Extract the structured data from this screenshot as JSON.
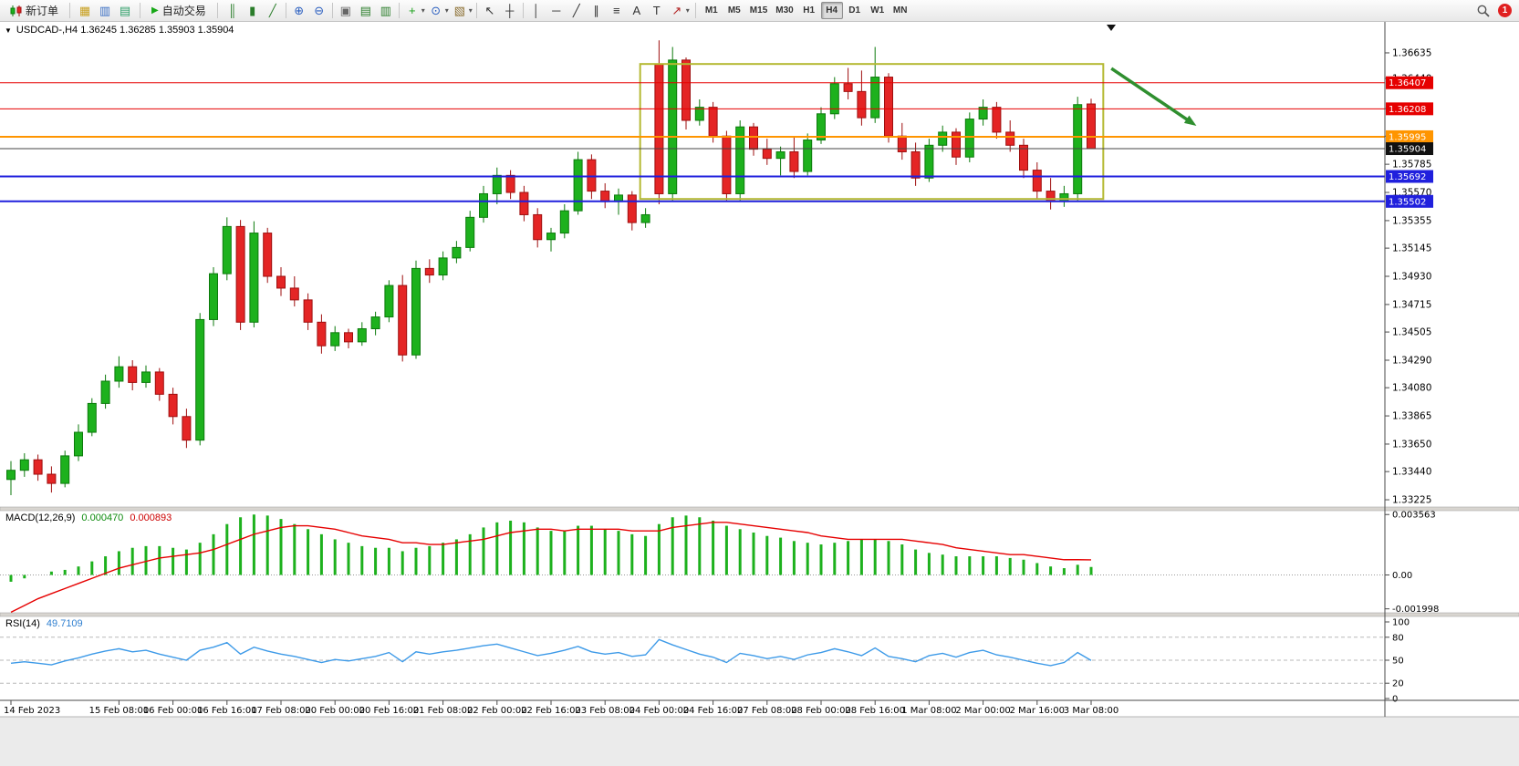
{
  "toolbar": {
    "new_order": {
      "label": "新订单"
    },
    "autotrading": {
      "label": "自动交易",
      "icon_glyph": "▶"
    },
    "dropdown_glyph": "▾",
    "icon_groups": [
      [
        {
          "name": "new-chart-icon",
          "glyph": "▦",
          "color": "#c8a020"
        },
        {
          "name": "profiles-icon",
          "glyph": "▥",
          "color": "#3b6fc4"
        },
        {
          "name": "market-watch-icon",
          "glyph": "▤",
          "color": "#2e9e68"
        }
      ],
      [
        {
          "name": "bar-chart-icon",
          "glyph": "║",
          "color": "#2a7d2a"
        },
        {
          "name": "candlestick-chart-icon",
          "glyph": "▮",
          "color": "#2a7d2a"
        },
        {
          "name": "line-chart-icon",
          "glyph": "╱",
          "color": "#2a7d2a"
        }
      ],
      [
        {
          "name": "zoom-in-icon",
          "glyph": "⊕",
          "color": "#2b5fc0"
        },
        {
          "name": "zoom-out-icon",
          "glyph": "⊖",
          "color": "#2b5fc0"
        }
      ],
      [
        {
          "name": "tile-windows-icon",
          "glyph": "▣",
          "color": "#666666"
        },
        {
          "name": "indicators-window-icon",
          "glyph": "▤",
          "color": "#2a7d2a"
        },
        {
          "name": "separate-window-icon",
          "glyph": "▥",
          "color": "#2a7d2a"
        }
      ],
      [
        {
          "name": "add-indicator-icon",
          "glyph": "+",
          "color": "#18a018",
          "dropdown": true
        },
        {
          "name": "periods-icon",
          "glyph": "⊙",
          "color": "#2b5fc0",
          "dropdown": true
        },
        {
          "name": "template-icon",
          "glyph": "▧",
          "color": "#8a6d2f",
          "dropdown": true
        }
      ],
      [
        {
          "name": "cursor-icon",
          "glyph": "↖",
          "color": "#333333"
        },
        {
          "name": "crosshair-icon",
          "glyph": "┼",
          "color": "#333333"
        }
      ],
      [
        {
          "name": "vertical-line-icon",
          "glyph": "│",
          "color": "#333333"
        },
        {
          "name": "horizontal-line-icon",
          "glyph": "─",
          "color": "#333333"
        },
        {
          "name": "trendline-icon",
          "glyph": "╱",
          "color": "#333333"
        },
        {
          "name": "channel-icon",
          "glyph": "∥",
          "color": "#333333"
        },
        {
          "name": "fibonacci-icon",
          "glyph": "≡",
          "color": "#333333"
        },
        {
          "name": "text-icon",
          "glyph": "A",
          "color": "#333333"
        },
        {
          "name": "label-icon",
          "glyph": "T",
          "color": "#333333"
        },
        {
          "name": "arrows-icon",
          "glyph": "↗",
          "color": "#b22222",
          "dropdown": true
        }
      ]
    ],
    "timeframes": [
      "M1",
      "M5",
      "M15",
      "M30",
      "H1",
      "H4",
      "D1",
      "W1",
      "MN"
    ],
    "active_timeframe": "H4",
    "notification": {
      "count": "1"
    }
  },
  "chart": {
    "menu_glyph": "▼",
    "title": "USDCAD-,H4  1.36245 1.36285 1.35903 1.35904",
    "symbol": "USDCAD-",
    "period": "H4"
  },
  "indicators": {
    "macd": {
      "name": "MACD(12,26,9)",
      "main_value": "0.000470",
      "signal_value": "0.000893"
    },
    "rsi": {
      "name": "RSI(14)",
      "value": "49.7109"
    }
  },
  "chart_data": {
    "type": "candlestick",
    "symbol": "USDCAD-",
    "timeframe": "H4",
    "colors": {
      "bull": "#1db11d",
      "bull_border": "#0c7a0c",
      "bear": "#e42525",
      "bear_border": "#9e0f0f",
      "macd_hist": "#1db11d",
      "macd_signal": "#e60000",
      "rsi_line": "#3d9ae8",
      "level_dash": "#b8b8b8",
      "axis_line": "#4a4a4a",
      "text": "#000000",
      "box": "#b5b933",
      "arrow": "#2f8f2f",
      "bid_line": "#444444",
      "bid_badge": "#111111"
    },
    "candles": [
      [
        1.3338,
        1.3352,
        1.3326,
        1.3345
      ],
      [
        1.3345,
        1.3358,
        1.334,
        1.3353
      ],
      [
        1.3353,
        1.3357,
        1.3337,
        1.3342
      ],
      [
        1.3342,
        1.3348,
        1.3328,
        1.3335
      ],
      [
        1.3335,
        1.336,
        1.3332,
        1.3356
      ],
      [
        1.3356,
        1.338,
        1.3352,
        1.3374
      ],
      [
        1.3374,
        1.34,
        1.3371,
        1.3396
      ],
      [
        1.3396,
        1.3418,
        1.3392,
        1.3413
      ],
      [
        1.3413,
        1.3432,
        1.3408,
        1.3424
      ],
      [
        1.3424,
        1.3429,
        1.3406,
        1.3412
      ],
      [
        1.3412,
        1.3425,
        1.3408,
        1.342
      ],
      [
        1.342,
        1.3423,
        1.3398,
        1.3403
      ],
      [
        1.3403,
        1.3408,
        1.338,
        1.3386
      ],
      [
        1.3386,
        1.3392,
        1.3362,
        1.3368
      ],
      [
        1.3368,
        1.3465,
        1.3364,
        1.346
      ],
      [
        1.346,
        1.35,
        1.3455,
        1.3495
      ],
      [
        1.3495,
        1.3538,
        1.349,
        1.3531
      ],
      [
        1.3531,
        1.3536,
        1.3452,
        1.3458
      ],
      [
        1.3458,
        1.3535,
        1.3454,
        1.3526
      ],
      [
        1.3526,
        1.353,
        1.3488,
        1.3493
      ],
      [
        1.3493,
        1.35,
        1.3478,
        1.3484
      ],
      [
        1.3484,
        1.3493,
        1.347,
        1.3475
      ],
      [
        1.3475,
        1.348,
        1.3452,
        1.3458
      ],
      [
        1.3458,
        1.3464,
        1.3434,
        1.344
      ],
      [
        1.344,
        1.3455,
        1.3436,
        1.345
      ],
      [
        1.345,
        1.3453,
        1.3438,
        1.3443
      ],
      [
        1.3443,
        1.3458,
        1.344,
        1.3453
      ],
      [
        1.3453,
        1.3466,
        1.3448,
        1.3462
      ],
      [
        1.3462,
        1.349,
        1.3458,
        1.3486
      ],
      [
        1.3486,
        1.3494,
        1.3428,
        1.3433
      ],
      [
        1.3433,
        1.3505,
        1.343,
        1.3499
      ],
      [
        1.3499,
        1.3506,
        1.3488,
        1.3494
      ],
      [
        1.3494,
        1.3512,
        1.349,
        1.3507
      ],
      [
        1.3507,
        1.352,
        1.3503,
        1.3515
      ],
      [
        1.3515,
        1.3543,
        1.3512,
        1.3538
      ],
      [
        1.3538,
        1.3562,
        1.3534,
        1.3556
      ],
      [
        1.3556,
        1.3576,
        1.3548,
        1.357
      ],
      [
        1.357,
        1.3574,
        1.3552,
        1.3557
      ],
      [
        1.3557,
        1.3562,
        1.3535,
        1.354
      ],
      [
        1.354,
        1.3545,
        1.3515,
        1.3521
      ],
      [
        1.3521,
        1.353,
        1.3512,
        1.3526
      ],
      [
        1.3526,
        1.3548,
        1.3522,
        1.3543
      ],
      [
        1.3543,
        1.3588,
        1.354,
        1.3582
      ],
      [
        1.3582,
        1.3586,
        1.3552,
        1.3558
      ],
      [
        1.3558,
        1.3564,
        1.3545,
        1.355
      ],
      [
        1.355,
        1.356,
        1.354,
        1.3555
      ],
      [
        1.3555,
        1.3558,
        1.3528,
        1.3534
      ],
      [
        1.3534,
        1.3545,
        1.353,
        1.354
      ],
      [
        1.3655,
        1.3673,
        1.3548,
        1.3556
      ],
      [
        1.3556,
        1.3668,
        1.355,
        1.3658
      ],
      [
        1.3658,
        1.366,
        1.3605,
        1.3612
      ],
      [
        1.3612,
        1.3628,
        1.3608,
        1.3622
      ],
      [
        1.3622,
        1.3626,
        1.3595,
        1.36
      ],
      [
        1.36,
        1.3604,
        1.355,
        1.3556
      ],
      [
        1.3556,
        1.3612,
        1.355,
        1.3607
      ],
      [
        1.3607,
        1.361,
        1.3585,
        1.359
      ],
      [
        1.359,
        1.3598,
        1.3578,
        1.3583
      ],
      [
        1.3583,
        1.3592,
        1.357,
        1.3588
      ],
      [
        1.3588,
        1.36,
        1.3568,
        1.3573
      ],
      [
        1.3573,
        1.3602,
        1.357,
        1.3597
      ],
      [
        1.3597,
        1.3622,
        1.3594,
        1.3617
      ],
      [
        1.3617,
        1.3645,
        1.3613,
        1.364
      ],
      [
        1.364,
        1.3652,
        1.3628,
        1.3634
      ],
      [
        1.3634,
        1.365,
        1.3608,
        1.3614
      ],
      [
        1.3614,
        1.3668,
        1.361,
        1.3645
      ],
      [
        1.3645,
        1.3648,
        1.3595,
        1.36
      ],
      [
        1.36,
        1.361,
        1.3582,
        1.3588
      ],
      [
        1.3588,
        1.3595,
        1.3562,
        1.3568
      ],
      [
        1.3568,
        1.3598,
        1.3565,
        1.3593
      ],
      [
        1.3593,
        1.3608,
        1.3588,
        1.3603
      ],
      [
        1.3603,
        1.3606,
        1.3578,
        1.3584
      ],
      [
        1.3584,
        1.3618,
        1.358,
        1.3613
      ],
      [
        1.3613,
        1.3628,
        1.3608,
        1.3622
      ],
      [
        1.3622,
        1.3626,
        1.3598,
        1.3603
      ],
      [
        1.3603,
        1.3612,
        1.3588,
        1.3593
      ],
      [
        1.3593,
        1.3598,
        1.3568,
        1.3574
      ],
      [
        1.3574,
        1.358,
        1.3552,
        1.3558
      ],
      [
        1.3558,
        1.3568,
        1.3544,
        1.355
      ],
      [
        1.355,
        1.3562,
        1.3546,
        1.3556
      ],
      [
        1.3556,
        1.363,
        1.355,
        1.3624
      ],
      [
        1.36245,
        1.36285,
        1.35903,
        1.35904
      ]
    ],
    "y_range": [
      1.3317,
      1.3676
    ],
    "y_ticks": [
      "1.36635",
      "1.36440",
      "1.36210",
      "1.36000",
      "1.35785",
      "1.35570",
      "1.35355",
      "1.35145",
      "1.34930",
      "1.34715",
      "1.34505",
      "1.34290",
      "1.34080",
      "1.33865",
      "1.33650",
      "1.33440",
      "1.33225"
    ],
    "hlines": [
      {
        "price": 1.36407,
        "color": "#e60000",
        "width": 1,
        "label": "1.36407"
      },
      {
        "price": 1.36208,
        "color": "#e60000",
        "width": 1,
        "label": "1.36208"
      },
      {
        "price": 1.35995,
        "color": "#ff9500",
        "width": 2,
        "label": "1.35995"
      },
      {
        "price": 1.35692,
        "color": "#2020dd",
        "width": 2,
        "label": "1.35692"
      },
      {
        "price": 1.35502,
        "color": "#2020dd",
        "width": 2,
        "label": "1.35502"
      }
    ],
    "bid": {
      "price": 1.35904,
      "label": "1.35904"
    },
    "rectangle": {
      "i1": 46.6,
      "i2": 80.9,
      "p_top": 1.3655,
      "p_bottom": 1.3552
    },
    "arrow": {
      "i1": 81.5,
      "p1": 1.36516,
      "i2": 87.8,
      "p2": 1.36078
    },
    "time_labels": [
      {
        "i": 0,
        "label": "14 Feb 2023"
      },
      {
        "i": 8,
        "label": "15 Feb 08:00"
      },
      {
        "i": 12,
        "label": "16 Feb 00:00"
      },
      {
        "i": 16,
        "label": "16 Feb 16:00"
      },
      {
        "i": 20,
        "label": "17 Feb 08:00"
      },
      {
        "i": 24,
        "label": "20 Feb 00:00"
      },
      {
        "i": 28,
        "label": "20 Feb 16:00"
      },
      {
        "i": 32,
        "label": "21 Feb 08:00"
      },
      {
        "i": 36,
        "label": "22 Feb 00:00"
      },
      {
        "i": 40,
        "label": "22 Feb 16:00"
      },
      {
        "i": 44,
        "label": "23 Feb 08:00"
      },
      {
        "i": 48,
        "label": "24 Feb 00:00"
      },
      {
        "i": 52,
        "label": "24 Feb 16:00"
      },
      {
        "i": 56,
        "label": "27 Feb 08:00"
      },
      {
        "i": 60,
        "label": "28 Feb 00:00"
      },
      {
        "i": 64,
        "label": "28 Feb 16:00"
      },
      {
        "i": 68,
        "label": "1 Mar 08:00"
      },
      {
        "i": 72,
        "label": "2 Mar 00:00"
      },
      {
        "i": 76,
        "label": "2 Mar 16:00"
      },
      {
        "i": 80,
        "label": "3 Mar 08:00"
      }
    ],
    "macd": {
      "type": "bar",
      "hist": [
        -0.0004,
        -0.0002,
        0.0,
        0.0002,
        0.0003,
        0.0005,
        0.0008,
        0.0011,
        0.0014,
        0.0016,
        0.0017,
        0.0017,
        0.0016,
        0.0015,
        0.0019,
        0.0024,
        0.003,
        0.0034,
        0.00356,
        0.0035,
        0.0033,
        0.003,
        0.0027,
        0.0024,
        0.0021,
        0.0019,
        0.0017,
        0.0016,
        0.0016,
        0.0014,
        0.0016,
        0.0017,
        0.0019,
        0.0021,
        0.0024,
        0.0028,
        0.0031,
        0.0032,
        0.0031,
        0.0028,
        0.0026,
        0.0026,
        0.0029,
        0.0029,
        0.0027,
        0.0026,
        0.0024,
        0.0023,
        0.003,
        0.0034,
        0.0035,
        0.0034,
        0.0032,
        0.0029,
        0.0027,
        0.0025,
        0.0023,
        0.0022,
        0.002,
        0.0019,
        0.0018,
        0.0019,
        0.002,
        0.0021,
        0.0021,
        0.002,
        0.0018,
        0.0015,
        0.0013,
        0.0012,
        0.0011,
        0.0011,
        0.0011,
        0.0011,
        0.001,
        0.0009,
        0.0007,
        0.0005,
        0.0004,
        0.0006,
        0.00047
      ],
      "signal": [
        -0.0022,
        -0.0018,
        -0.0014,
        -0.0011,
        -0.0008,
        -0.0005,
        -0.0002,
        0.0001,
        0.0004,
        0.0006,
        0.0008,
        0.001,
        0.0011,
        0.0012,
        0.0013,
        0.0015,
        0.0018,
        0.0021,
        0.0024,
        0.0026,
        0.0028,
        0.0029,
        0.0029,
        0.0028,
        0.0027,
        0.0025,
        0.0023,
        0.0022,
        0.0021,
        0.0019,
        0.0019,
        0.0018,
        0.0018,
        0.0019,
        0.002,
        0.0021,
        0.0023,
        0.0025,
        0.0026,
        0.0027,
        0.0027,
        0.0026,
        0.0027,
        0.0027,
        0.0027,
        0.0027,
        0.0026,
        0.0026,
        0.0026,
        0.0028,
        0.0029,
        0.003,
        0.0031,
        0.0031,
        0.003,
        0.0029,
        0.0028,
        0.0027,
        0.0026,
        0.0025,
        0.0023,
        0.0022,
        0.0021,
        0.0021,
        0.0021,
        0.0021,
        0.0021,
        0.002,
        0.0019,
        0.0018,
        0.0016,
        0.0015,
        0.0014,
        0.0013,
        0.0012,
        0.0012,
        0.0011,
        0.001,
        0.0009,
        0.0009,
        0.00089
      ],
      "ticks": [
        {
          "v": 0.003563,
          "label": "0.003563"
        },
        {
          "v": 0,
          "label": "0.00"
        },
        {
          "v": -0.001998,
          "label": "-0.001998"
        }
      ]
    },
    "rsi": {
      "type": "line",
      "values": [
        46,
        48,
        46,
        44,
        49,
        53,
        58,
        62,
        65,
        61,
        63,
        58,
        54,
        50,
        63,
        67,
        73,
        58,
        67,
        62,
        58,
        55,
        51,
        47,
        51,
        49,
        52,
        55,
        60,
        48,
        61,
        58,
        61,
        63,
        66,
        69,
        71,
        66,
        61,
        56,
        59,
        63,
        68,
        61,
        58,
        60,
        55,
        57,
        77,
        70,
        64,
        58,
        54,
        47,
        59,
        56,
        52,
        55,
        51,
        57,
        60,
        65,
        61,
        56,
        66,
        55,
        52,
        48,
        56,
        59,
        54,
        60,
        63,
        57,
        54,
        50,
        46,
        43,
        47,
        60,
        49.7
      ],
      "levels": [
        80,
        50,
        20
      ],
      "ticks": [
        {
          "v": 100,
          "label": "100"
        },
        {
          "v": 80,
          "label": "80"
        },
        {
          "v": 50,
          "label": "50"
        },
        {
          "v": 20,
          "label": "20"
        },
        {
          "v": 0,
          "label": "0"
        }
      ],
      "range": [
        0,
        100
      ]
    }
  }
}
